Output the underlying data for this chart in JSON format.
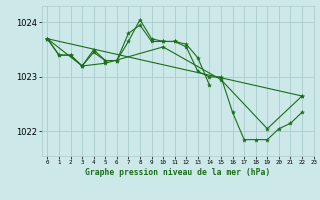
{
  "background_color": "#cce8e8",
  "grid_color": "#aacccc",
  "line_color": "#1a6e1a",
  "marker_color": "#1a6e1a",
  "title": "Graphe pression niveau de la mer (hPa)",
  "xlim": [
    -0.5,
    23
  ],
  "ylim": [
    1021.55,
    1024.3
  ],
  "yticks": [
    1022,
    1023,
    1024
  ],
  "series": [
    [
      1023.7,
      1023.4,
      1023.4,
      1023.2,
      1023.5,
      1023.3,
      1023.3,
      1023.8,
      1023.95,
      1023.65,
      1023.65,
      1023.65,
      1023.55,
      1023.1,
      1023.0,
      1023.0,
      1022.35,
      1021.85,
      1021.85,
      1021.85,
      1022.05,
      1022.15,
      1022.35,
      null
    ],
    [
      1023.7,
      1023.4,
      1023.4,
      1023.2,
      1023.45,
      1023.3,
      1023.3,
      1023.65,
      1024.05,
      1023.7,
      1023.65,
      1023.65,
      1023.6,
      1023.35,
      1022.85,
      null,
      null,
      null,
      null,
      null,
      null,
      null,
      null,
      null
    ],
    [
      1023.7,
      null,
      null,
      1023.2,
      null,
      1023.25,
      null,
      null,
      null,
      null,
      1023.55,
      null,
      null,
      null,
      null,
      1022.95,
      null,
      null,
      null,
      1022.05,
      null,
      null,
      1022.65,
      null
    ],
    [
      1023.7,
      null,
      null,
      null,
      null,
      null,
      null,
      null,
      null,
      null,
      null,
      null,
      null,
      null,
      null,
      null,
      null,
      null,
      null,
      null,
      null,
      null,
      1022.65,
      null
    ]
  ]
}
